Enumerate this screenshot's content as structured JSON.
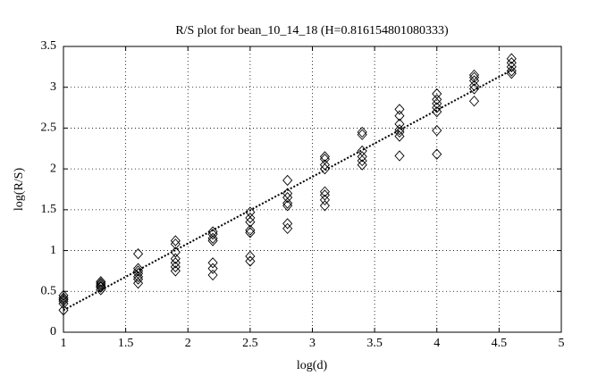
{
  "chart_data": {
    "type": "scatter",
    "title": "R/S plot for bean_10_14_18 (H=0.816154801080333)",
    "x_label": "log(d)",
    "y_label": "log(R/S)",
    "xlim": [
      1,
      5
    ],
    "ylim": [
      0,
      3.5
    ],
    "xticks": [
      1,
      1.5,
      2,
      2.5,
      3,
      3.5,
      4,
      4.5,
      5
    ],
    "yticks": [
      0,
      0.5,
      1,
      1.5,
      2,
      2.5,
      3,
      3.5
    ],
    "grid": true,
    "series": [
      {
        "marker": "diamond",
        "color": "#000000",
        "x": [
          1,
          1,
          1,
          1,
          1,
          1,
          1.3,
          1.3,
          1.3,
          1.3,
          1.3,
          1.3,
          1.6,
          1.6,
          1.6,
          1.6,
          1.6,
          1.6,
          1.6,
          1.9,
          1.9,
          1.9,
          1.9,
          1.9,
          1.9,
          1.9,
          2.2,
          2.2,
          2.2,
          2.2,
          2.2,
          2.2,
          2.2,
          2.5,
          2.5,
          2.5,
          2.5,
          2.5,
          2.5,
          2.5,
          2.8,
          2.8,
          2.8,
          2.8,
          2.8,
          2.8,
          2.8,
          3.1,
          3.1,
          3.1,
          3.1,
          3.1,
          3.1,
          3.1,
          3.1,
          3.4,
          3.4,
          3.4,
          3.4,
          3.4,
          3.4,
          3.7,
          3.7,
          3.7,
          3.7,
          3.7,
          3.7,
          3.7,
          4.0,
          4.0,
          4.0,
          4.0,
          4.0,
          4.0,
          4.0,
          4.3,
          4.3,
          4.3,
          4.3,
          4.3,
          4.3,
          4.6,
          4.6,
          4.6,
          4.6,
          4.6
        ],
        "values": [
          0.45,
          0.42,
          0.4,
          0.38,
          0.35,
          0.27,
          0.62,
          0.6,
          0.58,
          0.56,
          0.55,
          0.52,
          0.96,
          0.78,
          0.75,
          0.72,
          0.68,
          0.65,
          0.6,
          1.12,
          1.08,
          0.98,
          0.9,
          0.85,
          0.8,
          0.75,
          1.23,
          1.2,
          1.15,
          1.12,
          0.85,
          0.78,
          0.7,
          1.47,
          1.4,
          1.35,
          1.25,
          1.22,
          0.93,
          0.87,
          1.86,
          1.7,
          1.65,
          1.58,
          1.55,
          1.33,
          1.27,
          2.15,
          2.12,
          2.05,
          2.0,
          1.72,
          1.68,
          1.62,
          1.55,
          2.45,
          2.42,
          2.22,
          2.15,
          2.1,
          2.05,
          2.73,
          2.65,
          2.55,
          2.48,
          2.45,
          2.4,
          2.16,
          2.92,
          2.85,
          2.8,
          2.75,
          2.7,
          2.47,
          2.18,
          3.15,
          3.12,
          3.08,
          3.02,
          2.98,
          2.83,
          3.35,
          3.3,
          3.25,
          3.2,
          3.17
        ]
      },
      {
        "line_style": "dotted",
        "color": "#000000",
        "x": [
          1,
          4.6
        ],
        "values": [
          0.27,
          3.21
        ]
      }
    ]
  }
}
